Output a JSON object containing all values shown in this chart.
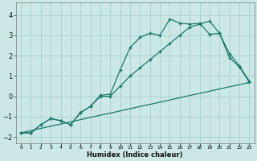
{
  "background_color": "#cce8e6",
  "grid_color": "#aad4d0",
  "line_color": "#1a7a6e",
  "xlabel": "Humidex (Indice chaleur)",
  "ylim": [
    -2.3,
    4.6
  ],
  "xlim": [
    -0.5,
    23.5
  ],
  "yticks": [
    -2,
    -1,
    0,
    1,
    2,
    3,
    4
  ],
  "linear_y": [
    -1.8,
    -1.69,
    -1.58,
    -1.47,
    -1.37,
    -1.26,
    -1.15,
    -1.04,
    -0.93,
    -0.83,
    -0.72,
    -0.61,
    -0.5,
    -0.4,
    -0.29,
    -0.18,
    -0.07,
    0.04,
    0.14,
    0.25,
    0.36,
    0.47,
    0.57,
    0.68
  ],
  "peak1_y": [
    -1.8,
    -1.8,
    -1.4,
    -1.1,
    -1.2,
    -1.4,
    -0.8,
    -0.5,
    0.05,
    0.1,
    1.3,
    2.4,
    2.9,
    3.1,
    3.0,
    3.8,
    3.6,
    3.55,
    3.6,
    3.05,
    3.1,
    1.9,
    1.45,
    0.7
  ],
  "peak2_y": [
    -1.8,
    -1.8,
    -1.4,
    -1.1,
    -1.2,
    -1.4,
    -0.8,
    -0.5,
    0.0,
    0.0,
    0.5,
    1.0,
    1.4,
    1.8,
    2.2,
    2.6,
    3.0,
    3.4,
    3.55,
    3.7,
    3.1,
    2.1,
    1.5,
    0.75
  ]
}
